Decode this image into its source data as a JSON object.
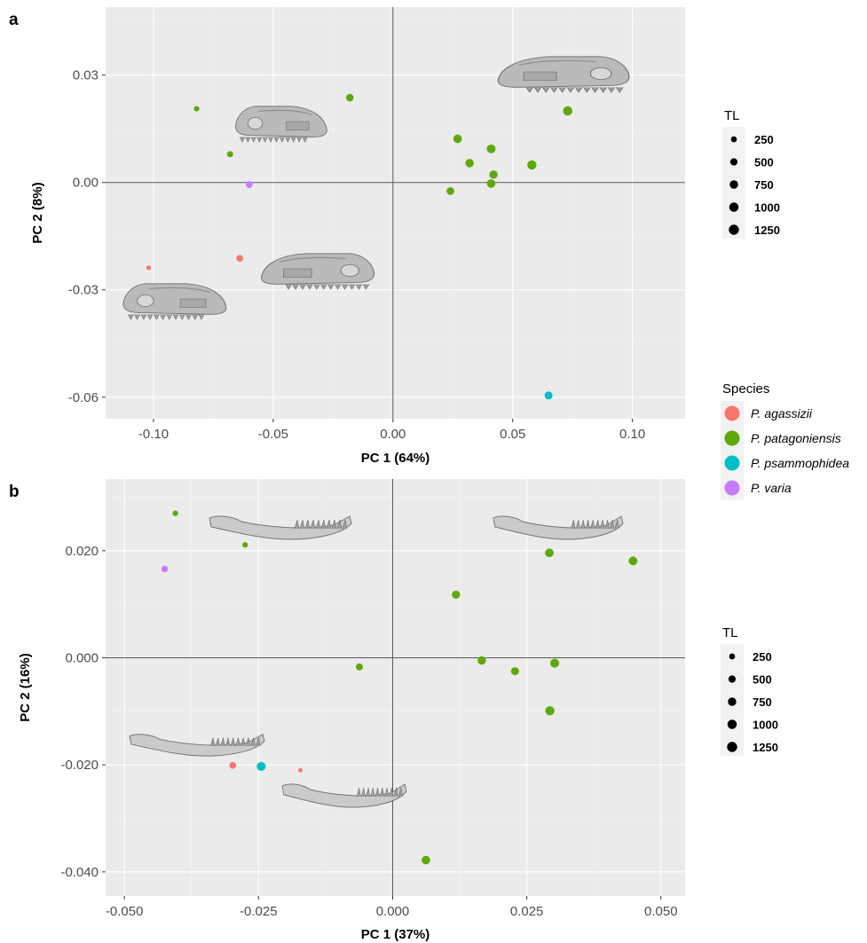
{
  "colors": {
    "panel_bg": "#ebebeb",
    "grid_major": "#ffffff",
    "zero_line": "#555555",
    "P. agassizii": "#f8766d",
    "P. patagoniensis": "#5ea80c",
    "P. psammophidea": "#00bfc4",
    "P. varia": "#c77cff"
  },
  "legend_species": {
    "title": "Species",
    "items": [
      "P. agassizii",
      "P. patagoniensis",
      "P. psammophidea",
      "P. varia"
    ]
  },
  "legend_size": {
    "title": "TL",
    "values": [
      "250",
      "500",
      "750",
      "1000",
      "1250"
    ]
  },
  "chart_data": [
    {
      "panel": "a",
      "type": "scatter",
      "xlabel": "PC 1 (64%)",
      "ylabel": "PC 2 (8%)",
      "xlim": [
        -0.12,
        0.122
      ],
      "ylim": [
        -0.066,
        0.049
      ],
      "xticks": [
        "-0.10",
        "-0.05",
        "0.00",
        "0.05",
        "0.10"
      ],
      "xtick_values": [
        -0.1,
        -0.05,
        0.0,
        0.05,
        0.1
      ],
      "yticks": [
        "0.03",
        "0.00",
        "-0.03",
        "-0.06"
      ],
      "ytick_values": [
        0.03,
        0.0,
        -0.03,
        -0.06
      ],
      "size_legend": "TL",
      "color_legend": "Species",
      "skull_images": "cranium",
      "points": [
        {
          "species": "P. patagoniensis",
          "x": -0.082,
          "y": 0.0206,
          "tl": 200
        },
        {
          "species": "P. patagoniensis",
          "x": -0.068,
          "y": 0.0079,
          "tl": 300
        },
        {
          "species": "P. patagoniensis",
          "x": -0.018,
          "y": 0.0237,
          "tl": 550
        },
        {
          "species": "P. patagoniensis",
          "x": 0.027,
          "y": 0.0122,
          "tl": 800
        },
        {
          "species": "P. patagoniensis",
          "x": 0.041,
          "y": 0.0094,
          "tl": 850
        },
        {
          "species": "P. patagoniensis",
          "x": 0.032,
          "y": 0.0054,
          "tl": 750
        },
        {
          "species": "P. patagoniensis",
          "x": 0.042,
          "y": 0.0022,
          "tl": 750
        },
        {
          "species": "P. patagoniensis",
          "x": 0.058,
          "y": 0.0049,
          "tl": 950
        },
        {
          "species": "P. patagoniensis",
          "x": 0.073,
          "y": 0.02,
          "tl": 1000
        },
        {
          "species": "P. patagoniensis",
          "x": 0.041,
          "y": -0.0003,
          "tl": 800
        },
        {
          "species": "P. patagoniensis",
          "x": 0.024,
          "y": -0.0024,
          "tl": 600
        },
        {
          "species": "P. varia",
          "x": -0.06,
          "y": -0.0006,
          "tl": 400
        },
        {
          "species": "P. agassizii",
          "x": -0.064,
          "y": -0.0212,
          "tl": 400
        },
        {
          "species": "P. agassizii",
          "x": -0.102,
          "y": -0.0238,
          "tl": 100
        },
        {
          "species": "P. psammophidea",
          "x": 0.065,
          "y": -0.0595,
          "tl": 650
        }
      ]
    },
    {
      "panel": "b",
      "type": "scatter",
      "xlabel": "PC 1 (37%)",
      "ylabel": "PC 2 (16%)",
      "xlim": [
        -0.0535,
        0.0545
      ],
      "ylim": [
        -0.0445,
        0.0334
      ],
      "xticks": [
        "-0.050",
        "-0.025",
        "0.000",
        "0.025",
        "0.050"
      ],
      "xtick_values": [
        -0.05,
        -0.025,
        0.0,
        0.025,
        0.05
      ],
      "yticks": [
        "0.020",
        "0.000",
        "-0.020",
        "-0.040"
      ],
      "ytick_values": [
        0.02,
        0.0,
        -0.02,
        -0.04
      ],
      "size_legend": "TL",
      "skull_images": "mandible",
      "points": [
        {
          "species": "P. patagoniensis",
          "x": -0.0405,
          "y": 0.027,
          "tl": 200
        },
        {
          "species": "P. patagoniensis",
          "x": -0.0275,
          "y": 0.0211,
          "tl": 200
        },
        {
          "species": "P. varia",
          "x": -0.0425,
          "y": 0.0166,
          "tl": 350
        },
        {
          "species": "P. patagoniensis",
          "x": 0.0292,
          "y": 0.0196,
          "tl": 800
        },
        {
          "species": "P. patagoniensis",
          "x": 0.0448,
          "y": 0.0181,
          "tl": 850
        },
        {
          "species": "P. patagoniensis",
          "x": 0.0118,
          "y": 0.0118,
          "tl": 700
        },
        {
          "species": "P. patagoniensis",
          "x": 0.0166,
          "y": -0.0005,
          "tl": 750
        },
        {
          "species": "P. patagoniensis",
          "x": 0.0228,
          "y": -0.0025,
          "tl": 650
        },
        {
          "species": "P. patagoniensis",
          "x": 0.0302,
          "y": -0.001,
          "tl": 900
        },
        {
          "species": "P. patagoniensis",
          "x": -0.0062,
          "y": -0.0017,
          "tl": 450
        },
        {
          "species": "P. patagoniensis",
          "x": 0.0293,
          "y": -0.0099,
          "tl": 950
        },
        {
          "species": "P. patagoniensis",
          "x": 0.0062,
          "y": -0.0378,
          "tl": 800
        },
        {
          "species": "P. agassizii",
          "x": -0.0298,
          "y": -0.0201,
          "tl": 400
        },
        {
          "species": "P. psammophidea",
          "x": -0.0245,
          "y": -0.0203,
          "tl": 900
        },
        {
          "species": "P. agassizii",
          "x": -0.0172,
          "y": -0.021,
          "tl": 80
        }
      ]
    }
  ]
}
